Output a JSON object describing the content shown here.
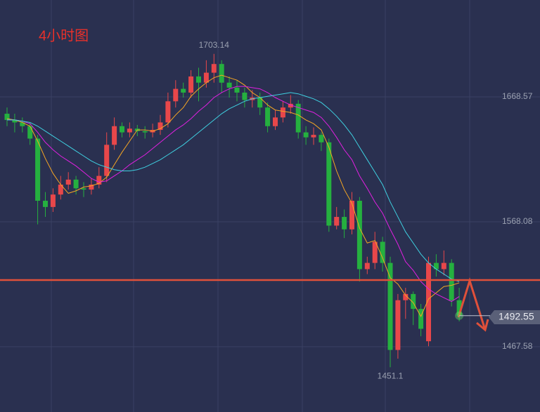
{
  "chart_data": {
    "type": "candlestick",
    "title": "4小时图",
    "open": [
      1655,
      1650,
      1648,
      1645,
      1635,
      1585,
      1580,
      1590,
      1598,
      1602,
      1595,
      1594,
      1598,
      1605,
      1630,
      1645,
      1640,
      1643,
      1641,
      1640,
      1642,
      1648,
      1665,
      1675,
      1672,
      1685,
      1680,
      1688,
      1695,
      1680,
      1676,
      1672,
      1666,
      1668,
      1660,
      1645,
      1652,
      1660,
      1663,
      1640,
      1636,
      1638,
      1632,
      1565,
      1572,
      1562,
      1585,
      1530,
      1535,
      1552,
      1535,
      1465,
      1505,
      1510,
      1498,
      1472,
      1535,
      1530,
      1535,
      1505
    ],
    "high": [
      1660,
      1655,
      1652,
      1648,
      1638,
      1592,
      1595,
      1605,
      1608,
      1605,
      1600,
      1603,
      1612,
      1640,
      1652,
      1648,
      1648,
      1646,
      1645,
      1647,
      1654,
      1672,
      1682,
      1680,
      1690,
      1692,
      1698,
      1703.14,
      1698,
      1685,
      1682,
      1676,
      1674,
      1672,
      1664,
      1658,
      1665,
      1670,
      1666,
      1645,
      1644,
      1640,
      1635,
      1580,
      1578,
      1592,
      1588,
      1540,
      1560,
      1556,
      1540,
      1510,
      1515,
      1512,
      1502,
      1540,
      1542,
      1545,
      1538,
      1515
    ],
    "low": [
      1645,
      1640,
      1640,
      1630,
      1566,
      1572,
      1576,
      1586,
      1594,
      1590,
      1588,
      1590,
      1595,
      1600,
      1626,
      1636,
      1636,
      1637,
      1635,
      1636,
      1638,
      1644,
      1660,
      1668,
      1668,
      1665,
      1676,
      1680,
      1672,
      1668,
      1665,
      1660,
      1660,
      1654,
      1640,
      1642,
      1648,
      1655,
      1635,
      1630,
      1630,
      1625,
      1560,
      1562,
      1555,
      1558,
      1520,
      1526,
      1530,
      1528,
      1451.1,
      1458,
      1490,
      1485,
      1476,
      1468,
      1524,
      1525,
      1500,
      1488
    ],
    "close": [
      1650,
      1648,
      1645,
      1635,
      1585,
      1580,
      1590,
      1598,
      1602,
      1595,
      1594,
      1598,
      1605,
      1630,
      1645,
      1640,
      1643,
      1641,
      1640,
      1642,
      1648,
      1665,
      1675,
      1672,
      1685,
      1680,
      1688,
      1695,
      1680,
      1676,
      1672,
      1666,
      1668,
      1660,
      1645,
      1652,
      1660,
      1663,
      1640,
      1636,
      1638,
      1632,
      1565,
      1572,
      1562,
      1585,
      1530,
      1535,
      1552,
      1535,
      1465,
      1505,
      1510,
      1498,
      1482,
      1535,
      1530,
      1535,
      1505,
      1492.55
    ],
    "up_color": "#e8474a",
    "down_color": "#25b03f",
    "series": [
      {
        "color": "#f5a623",
        "values": [
          1651,
          1650,
          1648,
          1645,
          1633,
          1619,
          1607,
          1598,
          1591,
          1593,
          1596,
          1597,
          1599,
          1604,
          1614,
          1624,
          1633,
          1642,
          1642,
          1641,
          1643,
          1647,
          1654,
          1660,
          1669,
          1675,
          1680,
          1684,
          1686,
          1684,
          1682,
          1678,
          1672,
          1668,
          1662,
          1658,
          1657,
          1656,
          1654,
          1650,
          1647,
          1642,
          1628,
          1609,
          1594,
          1583,
          1563,
          1551,
          1553,
          1539,
          1523,
          1518,
          1509,
          1503,
          1492,
          1506,
          1511,
          1516,
          1517,
          1519
        ]
      },
      {
        "color": "#e020e0",
        "values": [
          1650,
          1650,
          1649,
          1647,
          1640,
          1632,
          1626,
          1621,
          1617,
          1613,
          1608,
          1603,
          1600,
          1601,
          1605,
          1609,
          1614,
          1618,
          1622,
          1627,
          1632,
          1637,
          1642,
          1646,
          1651,
          1657,
          1662,
          1668,
          1672,
          1675,
          1677,
          1677,
          1676,
          1675,
          1672,
          1668,
          1665,
          1662,
          1660,
          1658,
          1656,
          1652,
          1645,
          1636,
          1626,
          1618,
          1605,
          1595,
          1584,
          1575,
          1562,
          1550,
          1536,
          1529,
          1520,
          1514,
          1510,
          1507,
          1504,
          1508
        ]
      },
      {
        "color": "#3fd0e0",
        "values": [
          1650,
          1650,
          1649,
          1648,
          1645,
          1641,
          1637,
          1633,
          1629,
          1625,
          1621,
          1617,
          1614,
          1612,
          1610,
          1609,
          1609,
          1610,
          1612,
          1615,
          1618,
          1622,
          1626,
          1630,
          1635,
          1640,
          1645,
          1650,
          1655,
          1659,
          1662,
          1665,
          1667,
          1668,
          1669,
          1670,
          1671,
          1672,
          1671,
          1669,
          1667,
          1664,
          1659,
          1653,
          1646,
          1638,
          1628,
          1618,
          1608,
          1598,
          1584,
          1572,
          1560,
          1551,
          1542,
          1535,
          1530,
          1526,
          1522,
          1520
        ]
      }
    ],
    "hline": {
      "value": 1521.22,
      "color": "#e0503a"
    },
    "ylim": [
      1415.08,
      1746.48
    ],
    "yticks": [
      1467.58,
      1568.08,
      1668.57
    ],
    "grid": true
  }
}
